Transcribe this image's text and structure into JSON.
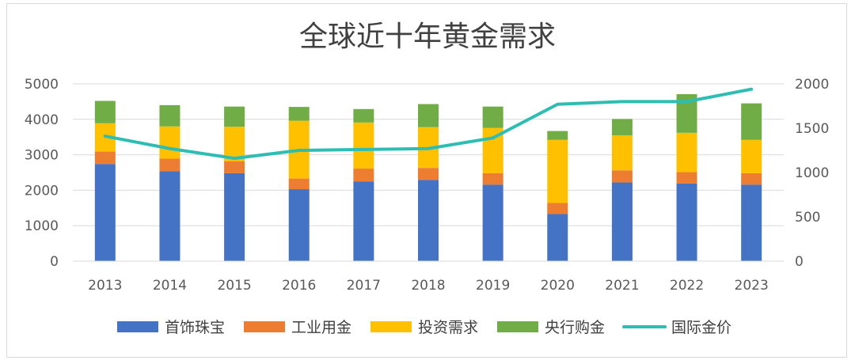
{
  "chart_data": {
    "type": "bar",
    "title": "全球近十年黄金需求",
    "categories": [
      "2013",
      "2014",
      "2015",
      "2016",
      "2017",
      "2018",
      "2019",
      "2020",
      "2021",
      "2022",
      "2023"
    ],
    "y_left": {
      "ylim": [
        0,
        5000
      ],
      "ticks": [
        "0",
        "1000",
        "2000",
        "3000",
        "4000",
        "5000"
      ]
    },
    "y_right": {
      "ylim": [
        0,
        2000
      ],
      "ticks": [
        "0",
        "500",
        "1000",
        "1500",
        "2000"
      ]
    },
    "grid": true,
    "legend_position": "bottom",
    "series": [
      {
        "name": "首饰珠宝",
        "kind": "bar",
        "axis": "left",
        "color": "#4472C4",
        "values": [
          2740,
          2540,
          2480,
          2030,
          2250,
          2290,
          2160,
          1330,
          2220,
          2190,
          2160
        ]
      },
      {
        "name": "工业用金",
        "kind": "bar",
        "axis": "left",
        "color": "#ED7D31",
        "values": [
          350,
          350,
          340,
          300,
          360,
          340,
          320,
          310,
          340,
          320,
          320
        ]
      },
      {
        "name": "投资需求",
        "kind": "bar",
        "axis": "left",
        "color": "#FFC000",
        "values": [
          800,
          910,
          970,
          1630,
          1300,
          1150,
          1280,
          1780,
          990,
          1110,
          940
        ]
      },
      {
        "name": "央行购金",
        "kind": "bar",
        "axis": "left",
        "color": "#70AD47",
        "values": [
          630,
          600,
          570,
          390,
          380,
          650,
          600,
          250,
          460,
          1090,
          1030
        ]
      },
      {
        "name": "国际金价",
        "kind": "line",
        "axis": "right",
        "color": "#2EBDB2",
        "values": [
          1410,
          1270,
          1160,
          1250,
          1260,
          1270,
          1390,
          1770,
          1800,
          1800,
          1940
        ]
      }
    ]
  }
}
